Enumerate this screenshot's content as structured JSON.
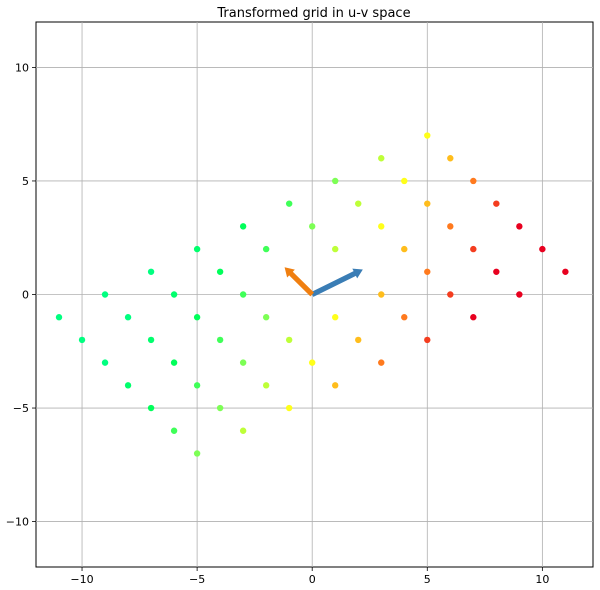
{
  "chart_data": {
    "type": "scatter",
    "title": "Transformed grid in u-v space",
    "xlabel": "",
    "ylabel": "",
    "xlim": [
      -12,
      12.2
    ],
    "ylim": [
      -12,
      12
    ],
    "xticks": [
      -10,
      -5,
      0,
      5,
      10
    ],
    "yticks": [
      -10,
      -5,
      0,
      5,
      10
    ],
    "xtick_labels": [
      "−10",
      "−5",
      "0",
      "5",
      "10"
    ],
    "ytick_labels": [
      "−10",
      "−5",
      "0",
      "5",
      "10"
    ],
    "grid": true,
    "colormap": [
      "#e8001f",
      "#ff7a1e",
      "#ffff1a",
      "#7dff55",
      "#00ff5a",
      "#00ff80",
      "#ff007a"
    ],
    "points": [
      {
        "x": -5,
        "y": -7
      },
      {
        "x": -6,
        "y": -6
      },
      {
        "x": -3,
        "y": -6
      },
      {
        "x": -7,
        "y": -5
      },
      {
        "x": -4,
        "y": -5
      },
      {
        "x": -1,
        "y": -5
      },
      {
        "x": -8,
        "y": -4
      },
      {
        "x": -5,
        "y": -4
      },
      {
        "x": -2,
        "y": -4
      },
      {
        "x": 1,
        "y": -4
      },
      {
        "x": -9,
        "y": -3
      },
      {
        "x": -6,
        "y": -3
      },
      {
        "x": -3,
        "y": -3
      },
      {
        "x": 0,
        "y": -3
      },
      {
        "x": 3,
        "y": -3
      },
      {
        "x": -10,
        "y": -2
      },
      {
        "x": -7,
        "y": -2
      },
      {
        "x": -4,
        "y": -2
      },
      {
        "x": -1,
        "y": -2
      },
      {
        "x": 2,
        "y": -2
      },
      {
        "x": 5,
        "y": -2
      },
      {
        "x": -11,
        "y": -1
      },
      {
        "x": -8,
        "y": -1
      },
      {
        "x": -5,
        "y": -1
      },
      {
        "x": -2,
        "y": -1
      },
      {
        "x": 1,
        "y": -1
      },
      {
        "x": 4,
        "y": -1
      },
      {
        "x": 7,
        "y": -1
      },
      {
        "x": -9,
        "y": 0
      },
      {
        "x": -6,
        "y": 0
      },
      {
        "x": -3,
        "y": 0
      },
      {
        "x": 3,
        "y": 0
      },
      {
        "x": 6,
        "y": 0
      },
      {
        "x": 9,
        "y": 0
      },
      {
        "x": -7,
        "y": 1
      },
      {
        "x": -4,
        "y": 1
      },
      {
        "x": 5,
        "y": 1
      },
      {
        "x": 8,
        "y": 1
      },
      {
        "x": 11,
        "y": 1
      },
      {
        "x": -5,
        "y": 2
      },
      {
        "x": -2,
        "y": 2
      },
      {
        "x": 1,
        "y": 2
      },
      {
        "x": 4,
        "y": 2
      },
      {
        "x": 7,
        "y": 2
      },
      {
        "x": 10,
        "y": 2
      },
      {
        "x": -3,
        "y": 3
      },
      {
        "x": 0,
        "y": 3
      },
      {
        "x": 3,
        "y": 3
      },
      {
        "x": 6,
        "y": 3
      },
      {
        "x": 9,
        "y": 3
      },
      {
        "x": -1,
        "y": 4
      },
      {
        "x": 2,
        "y": 4
      },
      {
        "x": 5,
        "y": 4
      },
      {
        "x": 8,
        "y": 4
      },
      {
        "x": 1,
        "y": 5
      },
      {
        "x": 4,
        "y": 5
      },
      {
        "x": 7,
        "y": 5
      },
      {
        "x": 3,
        "y": 6
      },
      {
        "x": 6,
        "y": 6
      },
      {
        "x": 5,
        "y": 7
      }
    ],
    "vectors": [
      {
        "x": 2.2,
        "y": 1.1,
        "color": "#3a7db5"
      },
      {
        "x": -1.2,
        "y": 1.2,
        "color": "#f07f10"
      }
    ]
  }
}
